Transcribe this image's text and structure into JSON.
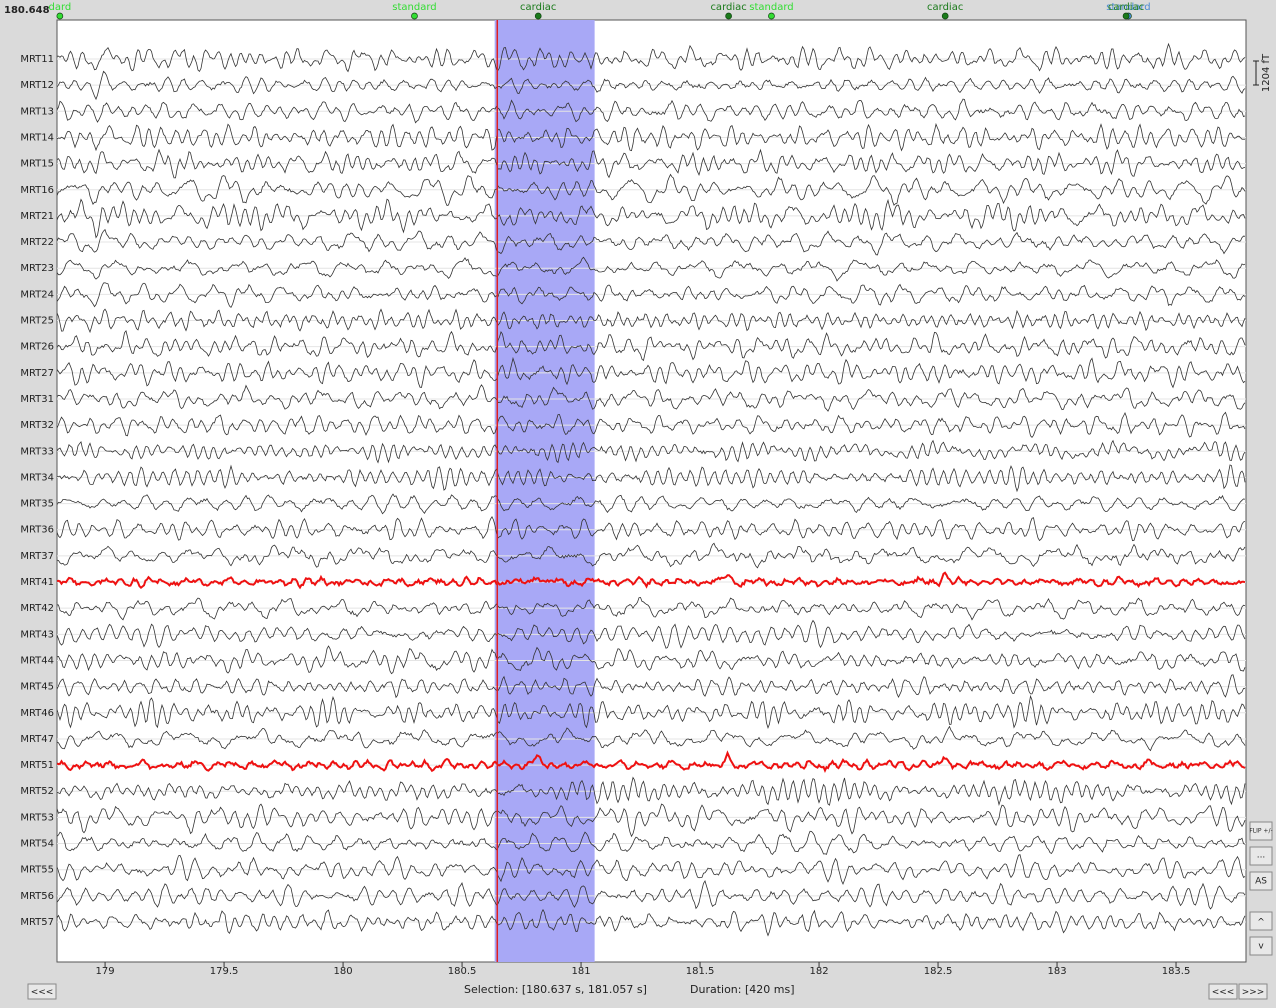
{
  "cursor_time": 180.648,
  "channels": [
    {
      "name": "MRT11",
      "highlighted": false
    },
    {
      "name": "MRT12",
      "highlighted": false
    },
    {
      "name": "MRT13",
      "highlighted": false
    },
    {
      "name": "MRT14",
      "highlighted": false
    },
    {
      "name": "MRT15",
      "highlighted": false
    },
    {
      "name": "MRT16",
      "highlighted": false
    },
    {
      "name": "MRT21",
      "highlighted": false
    },
    {
      "name": "MRT22",
      "highlighted": false
    },
    {
      "name": "MRT23",
      "highlighted": false
    },
    {
      "name": "MRT24",
      "highlighted": false
    },
    {
      "name": "MRT25",
      "highlighted": false
    },
    {
      "name": "MRT26",
      "highlighted": false
    },
    {
      "name": "MRT27",
      "highlighted": false
    },
    {
      "name": "MRT31",
      "highlighted": false
    },
    {
      "name": "MRT32",
      "highlighted": false
    },
    {
      "name": "MRT33",
      "highlighted": false
    },
    {
      "name": "MRT34",
      "highlighted": false
    },
    {
      "name": "MRT35",
      "highlighted": false
    },
    {
      "name": "MRT36",
      "highlighted": false
    },
    {
      "name": "MRT37",
      "highlighted": false
    },
    {
      "name": "MRT41",
      "highlighted": true
    },
    {
      "name": "MRT42",
      "highlighted": false
    },
    {
      "name": "MRT43",
      "highlighted": false
    },
    {
      "name": "MRT44",
      "highlighted": false
    },
    {
      "name": "MRT45",
      "highlighted": false
    },
    {
      "name": "MRT46",
      "highlighted": false
    },
    {
      "name": "MRT47",
      "highlighted": false
    },
    {
      "name": "MRT51",
      "highlighted": true
    },
    {
      "name": "MRT52",
      "highlighted": false
    },
    {
      "name": "MRT53",
      "highlighted": false
    },
    {
      "name": "MRT54",
      "highlighted": false
    },
    {
      "name": "MRT55",
      "highlighted": false
    },
    {
      "name": "MRT56",
      "highlighted": false
    },
    {
      "name": "MRT57",
      "highlighted": false
    }
  ],
  "time_axis": {
    "range": [
      178.798,
      183.794
    ],
    "ticks": [
      179,
      179.5,
      180,
      180.5,
      181,
      181.5,
      182,
      182.5,
      183,
      183.5
    ]
  },
  "events": [
    {
      "label": "dard",
      "time": 178.81,
      "color": "#33dd33"
    },
    {
      "label": "standard",
      "time": 180.3,
      "color": "#33dd33"
    },
    {
      "label": "cardiac",
      "time": 180.82,
      "color": "#1a7a1a"
    },
    {
      "label": "cardiac",
      "time": 181.62,
      "color": "#1a7a1a"
    },
    {
      "label": "standard",
      "time": 181.8,
      "color": "#33dd33"
    },
    {
      "label": "cardiac",
      "time": 182.53,
      "color": "#1a7a1a"
    },
    {
      "label": "standard",
      "time": 183.3,
      "color": "#4a8ad4"
    },
    {
      "label": "cardiac",
      "time": 183.29,
      "color": "#1a7a1a"
    }
  ],
  "selection": {
    "range": [
      180.637,
      181.057
    ]
  },
  "status": {
    "selection": "Selection: [180.637 s, 181.057 s]",
    "duration": "Duration: [420 ms]"
  },
  "scale_label": "1204 fT",
  "buttons": {
    "back": "<<<",
    "prev": "<<<",
    "next": ">>>",
    "flip": "FLIP +/-",
    "more": "...",
    "autoscale": "AS",
    "up": "^",
    "down": "v"
  }
}
